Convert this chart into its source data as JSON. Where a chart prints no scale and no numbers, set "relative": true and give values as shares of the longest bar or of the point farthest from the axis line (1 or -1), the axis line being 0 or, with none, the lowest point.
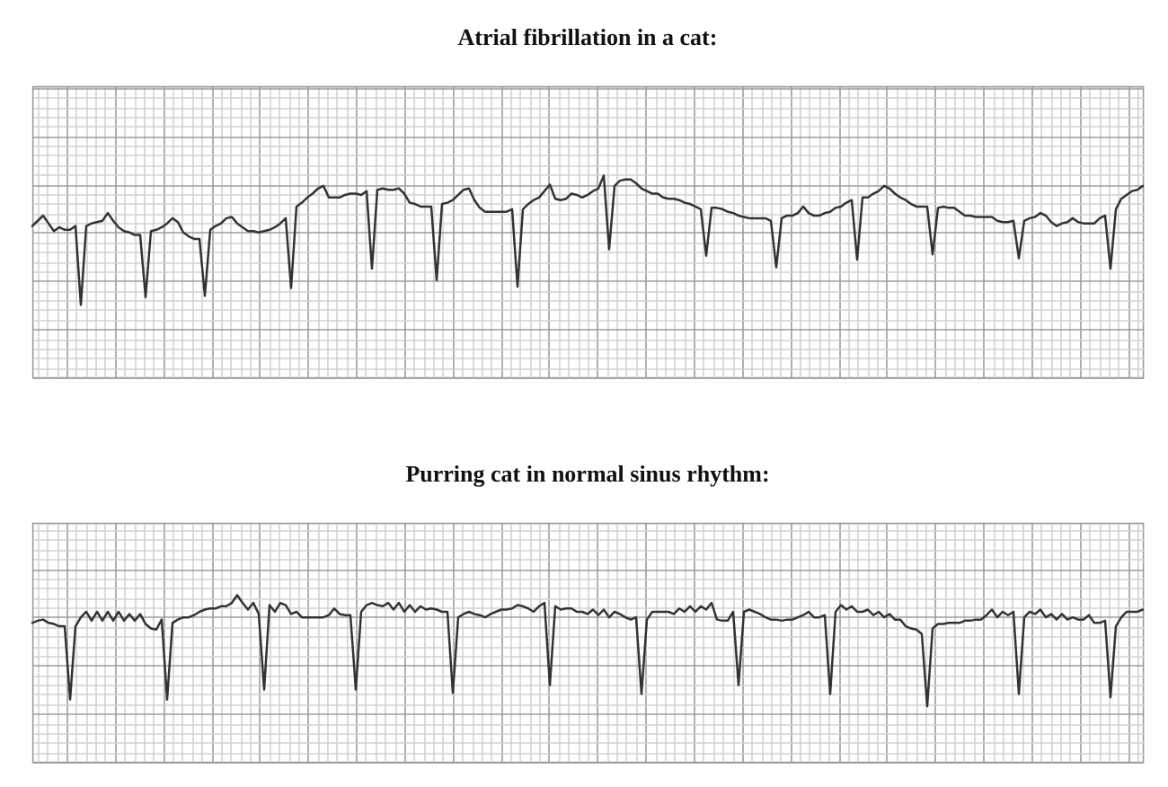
{
  "chart_data": [
    {
      "type": "line",
      "title": "Atrial fibrillation in a cat:",
      "relative": true,
      "grid": true,
      "categories": [
        null,
        null,
        null,
        null,
        null,
        null,
        null,
        null,
        null,
        null,
        null,
        null,
        null,
        null,
        null,
        null,
        null,
        null,
        null,
        null,
        null,
        null,
        null,
        null,
        null,
        null,
        null,
        null,
        null,
        null,
        null,
        null,
        null,
        null,
        null,
        null,
        null,
        null,
        null,
        null,
        null,
        null,
        null,
        null,
        null,
        null,
        null,
        null,
        null,
        null,
        null,
        null,
        null,
        null,
        null,
        null,
        null,
        null,
        null,
        null,
        null,
        null,
        null,
        null,
        null,
        null,
        null,
        null,
        null,
        null,
        null,
        null,
        null,
        null,
        null,
        null,
        null,
        null,
        null,
        null,
        null,
        null,
        null,
        null,
        null,
        null,
        null,
        null,
        null,
        null,
        null,
        null,
        null,
        null,
        null,
        null,
        null,
        null,
        null,
        null,
        null,
        null,
        null,
        null,
        null,
        null,
        null,
        null,
        null,
        null,
        null,
        null,
        null,
        null,
        null,
        null,
        null,
        null,
        null,
        null,
        null,
        null,
        null,
        null,
        null,
        null,
        null,
        null,
        null,
        null,
        null,
        null,
        null,
        null,
        null,
        null,
        null,
        null,
        null,
        null,
        null,
        null,
        null,
        null,
        null,
        null,
        null,
        null,
        null,
        null,
        null,
        null,
        null,
        null,
        null,
        null,
        null,
        null,
        null,
        null,
        null,
        null,
        null,
        null,
        null,
        null,
        null,
        null,
        null,
        null,
        null,
        null,
        null,
        null,
        null,
        null,
        null,
        null,
        null,
        null,
        null,
        null,
        null,
        null,
        null,
        null,
        null,
        null,
        null,
        null,
        null,
        null,
        null,
        null,
        null,
        null,
        null,
        null,
        null,
        null,
        null,
        null,
        null,
        null,
        null,
        null,
        null
      ],
      "series": [
        {
          "color": "#333333",
          "values": [
            0.61,
            0.65,
            0.69,
            0.63,
            0.57,
            0.6,
            0.58,
            0.58,
            0.61,
            0.0,
            0.61,
            0.63,
            0.64,
            0.65,
            0.71,
            0.65,
            0.6,
            0.57,
            0.56,
            0.54,
            0.54,
            0.06,
            0.57,
            0.58,
            0.6,
            0.63,
            0.67,
            0.64,
            0.56,
            0.53,
            0.51,
            0.51,
            0.07,
            0.58,
            0.61,
            0.63,
            0.67,
            0.68,
            0.63,
            0.6,
            0.57,
            0.57,
            0.56,
            0.57,
            0.58,
            0.6,
            0.63,
            0.67,
            0.13,
            0.76,
            0.79,
            0.83,
            0.86,
            0.9,
            0.92,
            0.83,
            0.83,
            0.83,
            0.85,
            0.86,
            0.86,
            0.85,
            0.88,
            0.28,
            0.89,
            0.9,
            0.89,
            0.89,
            0.9,
            0.86,
            0.79,
            0.78,
            0.76,
            0.76,
            0.76,
            0.19,
            0.78,
            0.79,
            0.81,
            0.85,
            0.89,
            0.9,
            0.81,
            0.75,
            0.72,
            0.72,
            0.72,
            0.72,
            0.72,
            0.74,
            0.14,
            0.74,
            0.78,
            0.81,
            0.83,
            0.88,
            0.93,
            0.82,
            0.81,
            0.82,
            0.86,
            0.85,
            0.83,
            0.85,
            0.88,
            0.9,
            1.0,
            0.43,
            0.92,
            0.96,
            0.97,
            0.97,
            0.94,
            0.9,
            0.88,
            0.86,
            0.86,
            0.83,
            0.82,
            0.82,
            0.81,
            0.79,
            0.78,
            0.76,
            0.74,
            0.38,
            0.75,
            0.75,
            0.74,
            0.72,
            0.71,
            0.69,
            0.68,
            0.67,
            0.67,
            0.67,
            0.67,
            0.65,
            0.29,
            0.67,
            0.69,
            0.69,
            0.71,
            0.76,
            0.71,
            0.69,
            0.69,
            0.71,
            0.72,
            0.75,
            0.76,
            0.79,
            0.81,
            0.35,
            0.83,
            0.83,
            0.86,
            0.88,
            0.92,
            0.9,
            0.86,
            0.83,
            0.81,
            0.78,
            0.76,
            0.76,
            0.76,
            0.39,
            0.75,
            0.76,
            0.75,
            0.75,
            0.72,
            0.69,
            0.69,
            0.68,
            0.68,
            0.68,
            0.68,
            0.65,
            0.64,
            0.64,
            0.65,
            0.36,
            0.65,
            0.67,
            0.68,
            0.71,
            0.69,
            0.64,
            0.61,
            0.63,
            0.64,
            0.67,
            0.64,
            0.63,
            0.63,
            0.63,
            0.67,
            0.69,
            0.28,
            0.74,
            0.82,
            0.85,
            0.88,
            0.89,
            0.92
          ]
        }
      ]
    },
    {
      "type": "line",
      "title": "Purring cat in normal sinus rhythm:",
      "relative": true,
      "grid": true,
      "categories": [
        null,
        null,
        null,
        null,
        null,
        null,
        null,
        null,
        null,
        null,
        null,
        null,
        null,
        null,
        null,
        null,
        null,
        null,
        null,
        null,
        null,
        null,
        null,
        null,
        null,
        null,
        null,
        null,
        null,
        null,
        null,
        null,
        null,
        null,
        null,
        null,
        null,
        null,
        null,
        null,
        null,
        null,
        null,
        null,
        null,
        null,
        null,
        null,
        null,
        null,
        null,
        null,
        null,
        null,
        null,
        null,
        null,
        null,
        null,
        null,
        null,
        null,
        null,
        null,
        null,
        null,
        null,
        null,
        null,
        null,
        null,
        null,
        null,
        null,
        null,
        null,
        null,
        null,
        null,
        null,
        null,
        null,
        null,
        null,
        null,
        null,
        null,
        null,
        null,
        null,
        null,
        null,
        null,
        null,
        null,
        null,
        null,
        null,
        null,
        null,
        null,
        null,
        null,
        null,
        null,
        null,
        null,
        null,
        null,
        null,
        null,
        null,
        null,
        null,
        null,
        null,
        null,
        null,
        null,
        null,
        null,
        null,
        null,
        null,
        null,
        null,
        null,
        null,
        null,
        null,
        null,
        null,
        null,
        null,
        null,
        null,
        null,
        null,
        null,
        null,
        null,
        null,
        null,
        null,
        null,
        null,
        null,
        null,
        null,
        null,
        null,
        null,
        null,
        null,
        null,
        null,
        null,
        null,
        null,
        null,
        null,
        null,
        null,
        null,
        null,
        null,
        null,
        null,
        null,
        null,
        null,
        null,
        null,
        null,
        null,
        null,
        null,
        null,
        null,
        null,
        null,
        null,
        null,
        null,
        null,
        null,
        null,
        null,
        null,
        null,
        null,
        null,
        null,
        null,
        null,
        null,
        null,
        null,
        null,
        null,
        null,
        null,
        null,
        null,
        null,
        null,
        null
      ],
      "series": [
        {
          "color": "#333333",
          "values": [
            0.75,
            0.77,
            0.78,
            0.75,
            0.74,
            0.72,
            0.72,
            0.06,
            0.72,
            0.8,
            0.85,
            0.77,
            0.85,
            0.77,
            0.85,
            0.77,
            0.85,
            0.77,
            0.83,
            0.77,
            0.83,
            0.74,
            0.7,
            0.69,
            0.78,
            0.06,
            0.75,
            0.78,
            0.8,
            0.8,
            0.82,
            0.85,
            0.87,
            0.88,
            0.88,
            0.9,
            0.9,
            0.93,
            1.0,
            0.93,
            0.87,
            0.93,
            0.83,
            0.15,
            0.91,
            0.85,
            0.93,
            0.91,
            0.83,
            0.85,
            0.8,
            0.8,
            0.8,
            0.8,
            0.8,
            0.82,
            0.88,
            0.83,
            0.82,
            0.82,
            0.15,
            0.85,
            0.91,
            0.93,
            0.91,
            0.9,
            0.93,
            0.87,
            0.93,
            0.85,
            0.91,
            0.85,
            0.9,
            0.87,
            0.88,
            0.87,
            0.85,
            0.85,
            0.12,
            0.8,
            0.83,
            0.85,
            0.83,
            0.82,
            0.8,
            0.83,
            0.85,
            0.87,
            0.87,
            0.88,
            0.91,
            0.9,
            0.88,
            0.85,
            0.9,
            0.93,
            0.19,
            0.9,
            0.87,
            0.88,
            0.88,
            0.85,
            0.85,
            0.83,
            0.87,
            0.82,
            0.87,
            0.8,
            0.85,
            0.83,
            0.8,
            0.78,
            0.8,
            0.11,
            0.78,
            0.85,
            0.85,
            0.85,
            0.85,
            0.83,
            0.88,
            0.85,
            0.9,
            0.85,
            0.9,
            0.87,
            0.93,
            0.78,
            0.77,
            0.77,
            0.85,
            0.19,
            0.85,
            0.87,
            0.85,
            0.83,
            0.8,
            0.78,
            0.78,
            0.77,
            0.78,
            0.78,
            0.8,
            0.82,
            0.85,
            0.8,
            0.8,
            0.82,
            0.11,
            0.85,
            0.91,
            0.87,
            0.9,
            0.85,
            0.85,
            0.87,
            0.82,
            0.85,
            0.8,
            0.83,
            0.78,
            0.78,
            0.72,
            0.7,
            0.69,
            0.65,
            0.0,
            0.7,
            0.74,
            0.74,
            0.75,
            0.75,
            0.75,
            0.77,
            0.77,
            0.78,
            0.78,
            0.82,
            0.87,
            0.8,
            0.85,
            0.82,
            0.85,
            0.11,
            0.8,
            0.85,
            0.83,
            0.87,
            0.8,
            0.83,
            0.78,
            0.83,
            0.78,
            0.8,
            0.78,
            0.78,
            0.82,
            0.75,
            0.75,
            0.77,
            0.08,
            0.72,
            0.8,
            0.85,
            0.85,
            0.85,
            0.87
          ]
        }
      ]
    }
  ]
}
